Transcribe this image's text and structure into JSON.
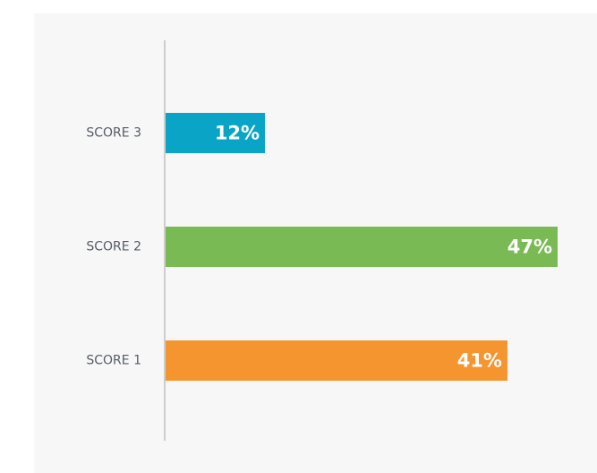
{
  "chart_data": {
    "type": "bar",
    "orientation": "horizontal",
    "categories": [
      "SCORE 3",
      "SCORE 2",
      "SCORE 1"
    ],
    "values": [
      12,
      47,
      41
    ],
    "value_labels": [
      "12%",
      "47%",
      "41%"
    ],
    "colors": [
      "#0aa5c6",
      "#7aba55",
      "#f5952f"
    ]
  }
}
